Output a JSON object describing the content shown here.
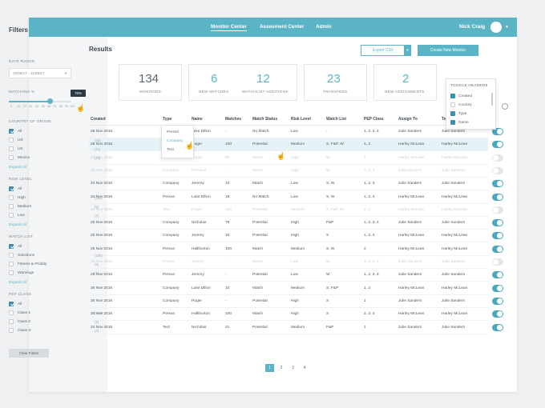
{
  "nav": {
    "items": [
      "Monitor Center",
      "Assesment Center",
      "Admin"
    ],
    "user_name": "Nick Craig"
  },
  "filters": {
    "title": "Filters",
    "date_range_label": "DATE RANGE",
    "date_range_value": "10/08/17 - 11/08/17",
    "matching_label": "MATCHING %",
    "matching_value": "70%",
    "matching_ticks": [
      "0",
      "10",
      "20",
      "30",
      "40",
      "50",
      "60",
      "70",
      "80",
      "90",
      "100"
    ],
    "country": {
      "label": "COUNTRY OF ORIGIN",
      "options": [
        {
          "label": "All",
          "count": "",
          "checked": true
        },
        {
          "label": "US",
          "count": "(32)",
          "checked": false
        },
        {
          "label": "UK",
          "count": "(41)",
          "checked": false
        },
        {
          "label": "Mexico",
          "count": "(23)",
          "checked": false
        }
      ],
      "expand": "Expand All"
    },
    "risk": {
      "label": "RISK LEVEL",
      "options": [
        {
          "label": "All",
          "count": "",
          "checked": true
        },
        {
          "label": "High",
          "count": "(190)",
          "checked": false
        },
        {
          "label": "Medium",
          "count": "(9)",
          "checked": false
        },
        {
          "label": "Low",
          "count": "(4)",
          "checked": false
        }
      ],
      "expand": "Expand All"
    },
    "watch": {
      "label": "WATCH LIST",
      "options": [
        {
          "label": "All",
          "count": "",
          "checked": true
        },
        {
          "label": "Sanctions",
          "count": "(190)",
          "checked": false
        },
        {
          "label": "Fitness & Probity",
          "count": "(9)",
          "checked": false
        },
        {
          "label": "Warnings",
          "count": "(4)",
          "checked": false
        }
      ],
      "expand": "Expand All"
    },
    "pep": {
      "label": "PEP CLASS",
      "options": [
        {
          "label": "All",
          "count": "",
          "checked": true
        },
        {
          "label": "Class 1",
          "count": "(190)",
          "checked": false
        },
        {
          "label": "Class 2",
          "count": "(9)",
          "checked": false
        },
        {
          "label": "Class 3",
          "count": "(4)",
          "checked": false
        }
      ]
    },
    "clear_label": "Clear Filters"
  },
  "results": {
    "title": "Results",
    "export_label": "Export CSV",
    "new_monitor_label": "Create New Monitor",
    "stats": [
      {
        "value": "134",
        "caption": "MONITORS"
      },
      {
        "value": "6",
        "caption": "NEW MATCHES"
      },
      {
        "value": "12",
        "caption": "WATCHLIST ADDITIONS"
      },
      {
        "value": "23",
        "caption": "TRANSFERS"
      },
      {
        "value": "2",
        "caption": "NEW ASSIGNMENTS"
      }
    ]
  },
  "table": {
    "headers": [
      "Created",
      "Type",
      "Name",
      "Matches",
      "Match Status",
      "Risk Level",
      "Watch List",
      "PEP Class",
      "Assign To",
      "Te",
      "Actions"
    ],
    "rows": [
      [
        "26 Nov 2016",
        "Person",
        "Luke Dillon",
        "-",
        "No Match",
        "Low",
        "-",
        "1, 2, 3, 4",
        "Julie Sanders",
        "Julie Sanders",
        "on",
        "normal"
      ],
      [
        "26 Nov 2016",
        "Company",
        "Roger",
        "100",
        "Potential",
        "Medium",
        "S, F&P, W",
        "1, 2",
        "Harley McLean",
        "Harley McLean",
        "on",
        "hl"
      ],
      [
        "26 Nov 2016",
        "Text",
        "Roger",
        "80",
        "Match",
        "High",
        "W",
        "1",
        "Harley McLean",
        "Harley McLean",
        "off",
        "dim"
      ],
      [
        "26 Nov 2016",
        "Company",
        "Nicholas",
        "-",
        "Match",
        "High",
        "W",
        "2, 3, 4",
        "Julie Sanders",
        "Julie Sanders",
        "off",
        "dim"
      ],
      [
        "24 Nov 2016",
        "Company",
        "Jeremy",
        "10",
        "Match",
        "Low",
        "S, W",
        "1, 2, 3",
        "Julie Sanders",
        "Julie Sanders",
        "on",
        "normal"
      ],
      [
        "24 Nov 2016",
        "Person",
        "Luke Dillon",
        "18",
        "No Match",
        "Low",
        "S, W",
        "1, 2, 3",
        "Harley McLean",
        "Harley McLean",
        "on",
        "normal"
      ],
      [
        "26 Nov 2016",
        "Text",
        "Roger",
        "100",
        "Potential",
        "Medium",
        "S, F&P, W",
        "1, 2",
        "Harley McLean",
        "Harley McLean",
        "off",
        "dim"
      ],
      [
        "25 Nov 2016",
        "Company",
        "Nicholas",
        "78",
        "Potential",
        "High",
        "F&P",
        "1, 2, 3, 4",
        "Julie Sanders",
        "Julie Sanders",
        "on",
        "normal"
      ],
      [
        "25 Nov 2016",
        "Company",
        "Jeremy",
        "10",
        "Potential",
        "High",
        "S",
        "1, 2, 3",
        "Harley McLean",
        "Harley McLean",
        "on",
        "normal"
      ],
      [
        "25 Nov 2016",
        "Person",
        "Halliburton",
        "100",
        "Match",
        "Medium",
        "S, W",
        "2",
        "Harley McLean",
        "Harley McLean",
        "on",
        "normal"
      ],
      [
        "25 Nov 2016",
        "Person",
        "Jeremy",
        "-",
        "Match",
        "Low",
        "W",
        "1, 2, 3, 4",
        "Julie Sanders",
        "Julie Sanders",
        "off",
        "dim"
      ],
      [
        "25 Nov 2016",
        "Person",
        "Jeremy",
        "-",
        "Potential",
        "Low",
        "W",
        "1, 2, 3, 4",
        "Julie Sanders",
        "Julie Sanders",
        "on",
        "normal"
      ],
      [
        "25 Nov 2016",
        "Company",
        "Luke Dillon",
        "10",
        "Match",
        "Medium",
        "S, F&P",
        "1, 2",
        "Harley McLean",
        "Harley McLean",
        "on",
        "normal"
      ],
      [
        "25 Nov 2016",
        "Company",
        "Roger",
        "-",
        "Potential",
        "High",
        "S",
        "1",
        "Julie Sanders",
        "Julie Sanders",
        "on",
        "normal"
      ],
      [
        "25 Nov 2016",
        "Person",
        "Halliburton",
        "100",
        "Match",
        "High",
        "S",
        "2, 3, 4",
        "Harley McLean",
        "Harley McLean",
        "on",
        "normal"
      ],
      [
        "24 Nov 2016",
        "Text",
        "Nicholas",
        "21",
        "Potential",
        "Medium",
        "F&P",
        "1",
        "Julie Sanders",
        "Julie Sanders",
        "on",
        "normal"
      ]
    ]
  },
  "type_menu": {
    "options": [
      "Person",
      "Company",
      "Text"
    ],
    "selected": "Company"
  },
  "toggle_headers": {
    "title": "TOGGLE HEADERS",
    "options": [
      {
        "label": "Created",
        "checked": true
      },
      {
        "label": "Country",
        "checked": false
      },
      {
        "label": "Type",
        "checked": true
      },
      {
        "label": "Name",
        "checked": true
      }
    ]
  },
  "pagination": {
    "pages": [
      "1",
      "2",
      "3",
      "4"
    ],
    "current": "1"
  },
  "colors": {
    "accent": "#5ab4c6",
    "dark_accent": "#3f8fae"
  }
}
